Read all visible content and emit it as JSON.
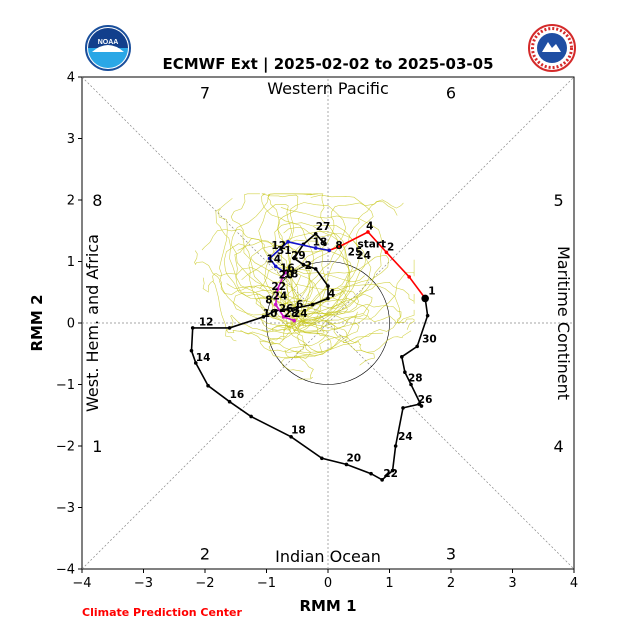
{
  "logos": {
    "left": {
      "icon": "noaa-logo-icon",
      "text": "NOAA"
    },
    "right": {
      "icon": "nws-logo-icon",
      "text": "NATIONAL WEATHER SERVICE"
    }
  },
  "credit": "Climate Prediction Center",
  "colors": {
    "ensemble": "#c8c81e",
    "observed": "#000000",
    "segment_red": "#ff0000",
    "segment_blue": "#1414c8",
    "segment_magenta": "#c814c8",
    "credit": "#ff0000"
  },
  "chart_data": {
    "type": "line",
    "title": "ECMWF Ext | 2025-02-02 to 2025-03-05",
    "xlabel": "RMM 1",
    "ylabel": "RMM 2",
    "xlim": [
      -4,
      4
    ],
    "ylim": [
      -4,
      4
    ],
    "xticks": [
      "−4",
      "−3",
      "−2",
      "−1",
      "0",
      "1",
      "2",
      "3",
      "4"
    ],
    "yticks": [
      "−4",
      "−3",
      "−2",
      "−1",
      "0",
      "1",
      "2",
      "3",
      "4"
    ],
    "grid": false,
    "reference": {
      "unit_circle_radius": 1,
      "diagonals": true,
      "axes_through_origin": true
    },
    "regions": {
      "top": "Western Pacific",
      "bottom": "Indian Ocean",
      "left": "West. Hem. and Africa",
      "right": "Maritime Continent"
    },
    "phases": [
      {
        "label": "1",
        "x": -3.75,
        "y": -2.0
      },
      {
        "label": "2",
        "x": -2.0,
        "y": -3.75
      },
      {
        "label": "3",
        "x": 2.0,
        "y": -3.75
      },
      {
        "label": "4",
        "x": 3.75,
        "y": -2.0
      },
      {
        "label": "5",
        "x": 3.75,
        "y": 2.0
      },
      {
        "label": "6",
        "x": 2.0,
        "y": 3.75
      },
      {
        "label": "7",
        "x": -2.0,
        "y": 3.75
      },
      {
        "label": "8",
        "x": -3.75,
        "y": 2.0
      }
    ],
    "series": [
      {
        "color": "#000000",
        "points": [
          [
            -0.05,
            1.28
          ],
          [
            -0.2,
            1.45
          ],
          [
            -0.4,
            1.28
          ],
          [
            -0.55,
            1.05
          ],
          [
            -0.4,
            0.95
          ],
          [
            -0.2,
            0.88
          ],
          [
            0.0,
            0.6
          ],
          [
            0.0,
            0.4
          ],
          [
            -0.25,
            0.3
          ],
          [
            -0.5,
            0.25
          ],
          [
            -0.85,
            0.2
          ],
          [
            -1.05,
            0.1
          ],
          [
            -1.6,
            -0.08
          ],
          [
            -2.2,
            -0.08
          ],
          [
            -2.22,
            -0.45
          ],
          [
            -2.15,
            -0.65
          ],
          [
            -1.95,
            -1.02
          ],
          [
            -1.6,
            -1.28
          ],
          [
            -1.25,
            -1.52
          ],
          [
            -0.6,
            -1.85
          ],
          [
            -0.1,
            -2.2
          ],
          [
            0.3,
            -2.3
          ],
          [
            0.7,
            -2.45
          ],
          [
            0.88,
            -2.55
          ],
          [
            1.05,
            -2.4
          ],
          [
            1.1,
            -2.0
          ],
          [
            1.22,
            -1.38
          ],
          [
            1.48,
            -1.32
          ],
          [
            1.52,
            -1.35
          ],
          [
            1.35,
            -1.0
          ],
          [
            1.25,
            -0.8
          ],
          [
            1.2,
            -0.55
          ],
          [
            1.45,
            -0.38
          ],
          [
            1.62,
            0.12
          ],
          [
            1.58,
            0.4
          ]
        ]
      },
      {
        "color": "#ff0000",
        "points": [
          [
            1.58,
            0.4
          ],
          [
            1.32,
            0.75
          ],
          [
            0.95,
            1.15
          ],
          [
            0.65,
            1.48
          ],
          [
            0.2,
            1.25
          ],
          [
            0.02,
            1.18
          ]
        ]
      },
      {
        "color": "#1414c8",
        "points": [
          [
            0.02,
            1.18
          ],
          [
            -0.2,
            1.22
          ],
          [
            -0.65,
            1.32
          ],
          [
            -0.95,
            1.05
          ],
          [
            -0.85,
            0.92
          ],
          [
            -0.7,
            0.82
          ]
        ]
      },
      {
        "color": "#c814c8",
        "points": [
          [
            -0.7,
            0.82
          ],
          [
            -0.82,
            0.55
          ],
          [
            -0.85,
            0.3
          ],
          [
            -0.72,
            0.1
          ],
          [
            -0.55,
            0.04
          ]
        ]
      }
    ],
    "labels": [
      {
        "text": "1",
        "x": 1.63,
        "y": 0.46
      },
      {
        "text": "30",
        "x": 1.53,
        "y": -0.32
      },
      {
        "text": "28",
        "x": 1.3,
        "y": -0.95
      },
      {
        "text": "26",
        "x": 1.46,
        "y": -1.3
      },
      {
        "text": "24",
        "x": 1.14,
        "y": -1.9
      },
      {
        "text": "22",
        "x": 0.9,
        "y": -2.5
      },
      {
        "text": "20",
        "x": 0.3,
        "y": -2.25
      },
      {
        "text": "18",
        "x": -0.6,
        "y": -1.8
      },
      {
        "text": "16",
        "x": -1.6,
        "y": -1.22
      },
      {
        "text": "14",
        "x": -2.15,
        "y": -0.62
      },
      {
        "text": "12",
        "x": -2.1,
        "y": -0.04
      },
      {
        "text": "10",
        "x": -1.06,
        "y": 0.1
      },
      {
        "text": "8",
        "x": -1.02,
        "y": 0.32
      },
      {
        "text": "6",
        "x": -0.52,
        "y": 0.24
      },
      {
        "text": "4",
        "x": 0.0,
        "y": 0.42
      },
      {
        "text": "2",
        "x": -0.38,
        "y": 0.88
      },
      {
        "text": "16",
        "x": -0.78,
        "y": 0.84
      },
      {
        "text": "18",
        "x": -0.72,
        "y": 0.74
      },
      {
        "text": "20",
        "x": -0.8,
        "y": 0.72
      },
      {
        "text": "22",
        "x": -0.92,
        "y": 0.54
      },
      {
        "text": "24",
        "x": -0.9,
        "y": 0.38
      },
      {
        "text": "26",
        "x": -0.8,
        "y": 0.18
      },
      {
        "text": "28",
        "x": -0.72,
        "y": 0.1
      },
      {
        "text": "24",
        "x": -0.57,
        "y": 0.1
      },
      {
        "text": "27",
        "x": -0.2,
        "y": 1.51
      },
      {
        "text": "4",
        "x": 0.62,
        "y": 1.52
      },
      {
        "text": "start",
        "x": 0.48,
        "y": 1.23
      },
      {
        "text": "2",
        "x": 0.96,
        "y": 1.18
      },
      {
        "text": "18",
        "x": -0.25,
        "y": 1.26
      },
      {
        "text": "8",
        "x": 0.12,
        "y": 1.2
      },
      {
        "text": "25",
        "x": 0.32,
        "y": 1.1
      },
      {
        "text": "24",
        "x": 0.46,
        "y": 1.04
      },
      {
        "text": "12",
        "x": -0.92,
        "y": 1.2
      },
      {
        "text": "31",
        "x": -0.83,
        "y": 1.12
      },
      {
        "text": "29",
        "x": -0.6,
        "y": 1.04
      },
      {
        "text": "14",
        "x": -1.0,
        "y": 0.98
      }
    ]
  }
}
